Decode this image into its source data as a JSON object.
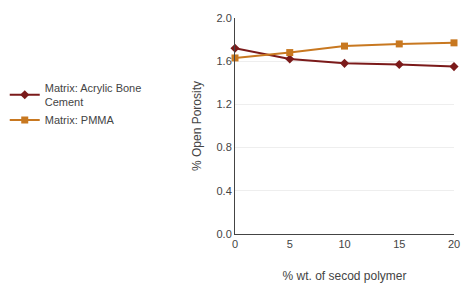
{
  "chart_data": {
    "type": "line",
    "x": [
      0,
      5,
      10,
      15,
      20
    ],
    "series": [
      {
        "name": "Matrix: Acrylic Bone\nCement",
        "color": "#7B1A1A",
        "marker": "diamond",
        "values": [
          1.72,
          1.62,
          1.58,
          1.57,
          1.55
        ]
      },
      {
        "name": "Matrix: PMMA",
        "color": "#C87820",
        "marker": "square",
        "values": [
          1.63,
          1.68,
          1.74,
          1.76,
          1.77
        ]
      }
    ],
    "x_label": "% wt. of secod polymer",
    "y_label": "% Open Porosity",
    "xlim": [
      0,
      20
    ],
    "xticks": [
      0,
      5,
      10,
      15,
      20
    ],
    "ylim": [
      0,
      2.0
    ],
    "yticks": [
      {
        "value": 0,
        "label": "0.0"
      },
      0.4,
      0.8,
      1.2,
      1.6,
      {
        "value": 2.0,
        "label": "2.0"
      }
    ],
    "grid": "y",
    "legend": "left"
  }
}
